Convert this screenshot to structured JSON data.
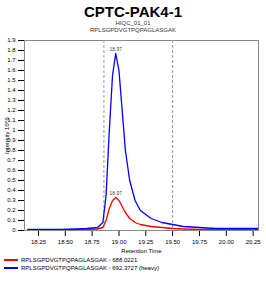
{
  "chart_data": {
    "type": "line",
    "title": "CPTC-PAK4-1",
    "subtitle": [
      "HIQC_01_01",
      "RPLSGPDVGTPQPAGLASGAK"
    ],
    "x_label": "Retention Time",
    "y_label": "Intensity 10^6",
    "x": [
      18.15,
      18.3,
      18.45,
      18.6,
      18.7,
      18.8,
      18.85,
      18.88,
      18.91,
      18.94,
      18.97,
      19.0,
      19.03,
      19.06,
      19.1,
      19.15,
      19.2,
      19.3,
      19.4,
      19.5,
      19.6,
      19.75,
      19.9,
      20.05,
      20.2,
      20.3
    ],
    "series": [
      {
        "name": "RPLSGPDVGTPQPAGLASGAK - 688.0221",
        "color": "#ff0000",
        "values": [
          0.005,
          0.005,
          0.005,
          0.008,
          0.01,
          0.015,
          0.03,
          0.1,
          0.22,
          0.3,
          0.33,
          0.3,
          0.24,
          0.18,
          0.12,
          0.08,
          0.06,
          0.04,
          0.03,
          0.02,
          0.015,
          0.01,
          0.01,
          0.01,
          0.01,
          0.01
        ]
      },
      {
        "name": "RPLSGPDVGTPQPAGLASGAK - 692.3727 (heavy)",
        "color": "#0000ff",
        "values": [
          0.01,
          0.01,
          0.01,
          0.015,
          0.02,
          0.03,
          0.08,
          0.35,
          1.0,
          1.55,
          1.77,
          1.6,
          1.2,
          0.8,
          0.5,
          0.3,
          0.2,
          0.12,
          0.08,
          0.06,
          0.04,
          0.03,
          0.02,
          0.02,
          0.02,
          0.02
        ]
      }
    ],
    "annotations": [
      {
        "text": "18.97",
        "x": 18.97,
        "y": 1.77
      },
      {
        "text": "18.97",
        "x": 18.97,
        "y": 0.33
      }
    ],
    "boundaries": [
      18.86,
      19.5
    ],
    "xlim": [
      18.12,
      20.3
    ],
    "xticks": [
      {
        "value": 18.25,
        "label": "18.25"
      },
      {
        "value": 18.5,
        "label": "18.50"
      },
      {
        "value": 18.75,
        "label": "18.75"
      },
      {
        "value": 19,
        "label": "19.00"
      },
      {
        "value": 19.25,
        "label": "19.25"
      },
      {
        "value": 19.5,
        "label": "19.50"
      },
      {
        "value": 19.75,
        "label": "19.75"
      },
      {
        "value": 20,
        "label": "20.00"
      },
      {
        "value": 20.25,
        "label": "20.25"
      }
    ],
    "ylim": [
      0,
      1.9
    ],
    "yticks": [
      0,
      0.1,
      0.2,
      0.3,
      0.4,
      0.5,
      0.6,
      0.7,
      0.8,
      0.9,
      1,
      1.1,
      1.2,
      1.3,
      1.4,
      1.5,
      1.6,
      1.7,
      1.8,
      1.9
    ],
    "legend": "bottom"
  }
}
